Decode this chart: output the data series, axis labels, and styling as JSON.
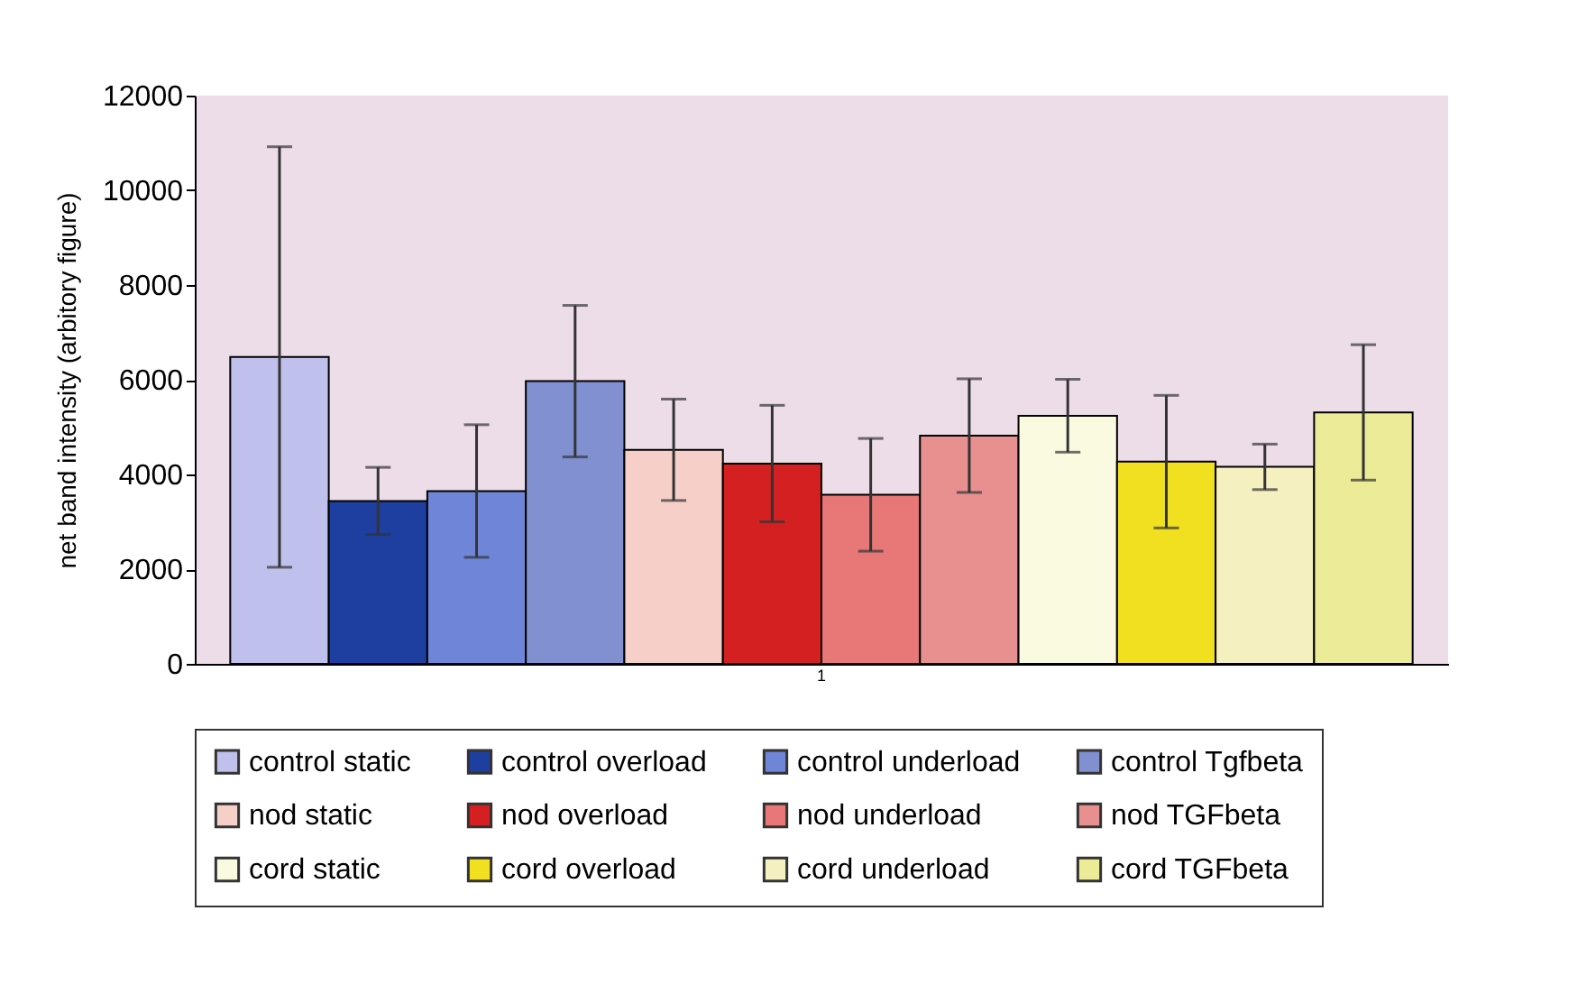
{
  "chart_data": {
    "type": "bar",
    "ylabel": "net band intensity (arbitory figure)",
    "categories": [
      "1"
    ],
    "ylim": [
      0,
      12000
    ],
    "yticks": [
      0,
      2000,
      4000,
      6000,
      8000,
      10000,
      12000
    ],
    "grid": false,
    "legend": "bottom",
    "series": [
      {
        "name": "control static",
        "color": "#c0c0ec",
        "values": [
          6480
        ],
        "errors": [
          4440
        ]
      },
      {
        "name": "control overload",
        "color": "#1f3fa0",
        "values": [
          3440
        ],
        "errors": [
          710
        ]
      },
      {
        "name": "control underload",
        "color": "#6f86d8",
        "values": [
          3650
        ],
        "errors": [
          1400
        ]
      },
      {
        "name": "control Tgfbeta",
        "color": "#8090d0",
        "values": [
          5970
        ],
        "errors": [
          1600
        ]
      },
      {
        "name": "nod static",
        "color": "#f6d0c8",
        "values": [
          4520
        ],
        "errors": [
          1070
        ]
      },
      {
        "name": "nod overload",
        "color": "#d42020",
        "values": [
          4230
        ],
        "errors": [
          1230
        ]
      },
      {
        "name": "nod underload",
        "color": "#e87878",
        "values": [
          3570
        ],
        "errors": [
          1190
        ]
      },
      {
        "name": "nod TGFbeta",
        "color": "#e89090",
        "values": [
          4820
        ],
        "errors": [
          1200
        ]
      },
      {
        "name": "cord static",
        "color": "#fafae0",
        "values": [
          5240
        ],
        "errors": [
          770
        ]
      },
      {
        "name": "cord overload",
        "color": "#f0e020",
        "values": [
          4270
        ],
        "errors": [
          1400
        ]
      },
      {
        "name": "cord underload",
        "color": "#f4f0c0",
        "values": [
          4160
        ],
        "errors": [
          480
        ]
      },
      {
        "name": "cord TGFbeta",
        "color": "#ecec98",
        "values": [
          5310
        ],
        "errors": [
          1430
        ]
      }
    ]
  }
}
